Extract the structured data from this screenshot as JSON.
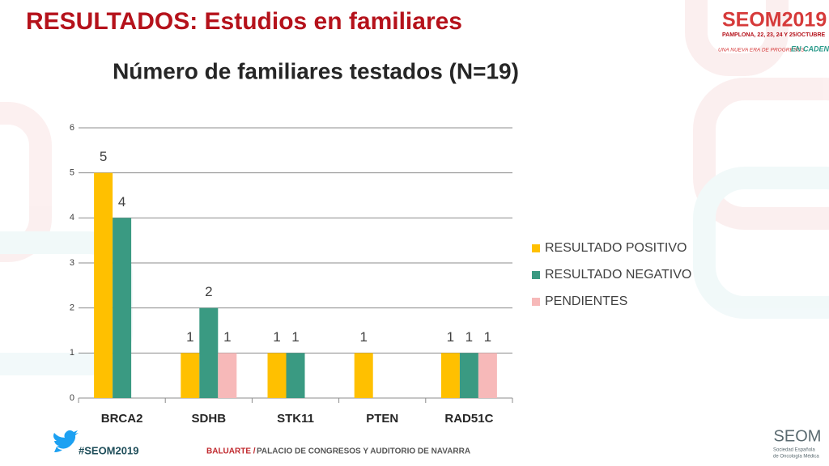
{
  "slide": {
    "title": "RESULTADOS: Estudios en familiares",
    "logo": {
      "brand": "SEOM2019",
      "dates": "PAMPLONA, 22, 23, 24 Y 25/OCTUBRE",
      "motto": "UNA NUEVA ERA DE PROGRESOS",
      "motto_highlight": "EN CADENA"
    },
    "footer": {
      "hashtag": "#SEOM2019",
      "venue_name": "BALUARTE /",
      "venue": "PALACIO DE CONGRESOS Y AUDITORIO DE NAVARRA",
      "society": "SEOM",
      "society_full_1": "Sociedad Española",
      "society_full_2": "de Oncología Médica"
    }
  },
  "chart_data": {
    "type": "bar",
    "title": "Número de familiares testados (N=19)",
    "categories": [
      "BRCA2",
      "SDHB",
      "STK11",
      "PTEN",
      "RAD51C"
    ],
    "series": [
      {
        "name": "RESULTADO POSITIVO",
        "color": "#FFC000",
        "values": [
          5,
          1,
          1,
          1,
          1
        ]
      },
      {
        "name": "RESULTADO NEGATIVO",
        "color": "#3A9A82",
        "values": [
          4,
          2,
          1,
          null,
          1
        ]
      },
      {
        "name": "PENDIENTES",
        "color": "#F7B9B9",
        "values": [
          null,
          1,
          null,
          null,
          1
        ]
      }
    ],
    "ylim": [
      0,
      6
    ],
    "yticks": [
      0,
      1,
      2,
      3,
      4,
      5,
      6
    ],
    "grid": true,
    "legend": "right"
  }
}
